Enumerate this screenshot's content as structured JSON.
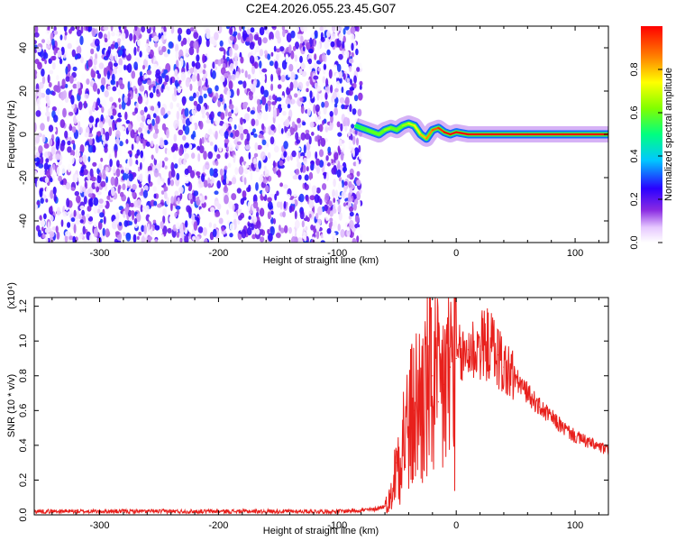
{
  "title": "C2E4.2026.055.23.45.G07",
  "colors": {
    "noise": "#7b2fe0",
    "signal_track": "#ff2020",
    "snr_line": "#e8201c",
    "frame": "#000000"
  },
  "chart_data": [
    {
      "type": "heatmap",
      "name": "spectrogram",
      "xlabel": "Height of straight line (km)",
      "ylabel": "Frequency (Hz)",
      "xlim": [
        -355,
        128
      ],
      "ylim": [
        -50,
        50
      ],
      "x_ticks": [
        -300,
        -200,
        -100,
        0,
        100
      ],
      "y_ticks": [
        -40,
        -20,
        0,
        20,
        40
      ],
      "colorbar": {
        "label": "Normalized spectral amplitude",
        "range": [
          0,
          1
        ],
        "ticks": [
          "0.0",
          "0.2",
          "0.4",
          "0.6",
          "0.8"
        ],
        "tick_values": [
          0.0,
          0.2,
          0.4,
          0.6,
          0.8
        ],
        "colormap": "rainbow (white-violet-blue-cyan-green-yellow-red)"
      },
      "noise_region": {
        "x_range": [
          -355,
          -80
        ],
        "freq_range": [
          -50,
          50
        ],
        "amplitude_range": [
          0.0,
          0.3
        ]
      },
      "signal_track": {
        "x": [
          -85,
          -80,
          -75,
          -70,
          -65,
          -60,
          -55,
          -50,
          -45,
          -40,
          -35,
          -30,
          -25,
          -20,
          -15,
          -10,
          -5,
          0,
          10,
          30,
          60,
          90,
          128
        ],
        "freq_hz": [
          4,
          3,
          2,
          1,
          0,
          2,
          3,
          2,
          4,
          5,
          4,
          0,
          -2,
          2,
          3,
          1,
          0,
          1,
          0,
          0,
          0,
          0,
          0
        ],
        "amplitude": [
          0.5,
          0.5,
          0.55,
          0.6,
          0.6,
          0.6,
          0.65,
          0.6,
          0.6,
          0.65,
          0.7,
          0.75,
          0.8,
          0.85,
          0.9,
          0.95,
          1.0,
          1.0,
          1.0,
          1.0,
          1.0,
          1.0,
          1.0
        ]
      }
    },
    {
      "type": "line",
      "name": "snr",
      "xlabel": "Height of straight line (km)",
      "ylabel": "SNR (10 * v/v)",
      "y_multiplier": "(x10⁴)",
      "xlim": [
        -355,
        128
      ],
      "ylim": [
        0,
        1.25
      ],
      "x_ticks": [
        -300,
        -200,
        -100,
        0,
        100
      ],
      "y_ticks": [
        0.0,
        0.2,
        0.4,
        0.6,
        0.8,
        1.0,
        1.2
      ],
      "y_tick_labels": [
        "0.0",
        "0.2",
        "0.4",
        "0.6",
        "0.8",
        "1.0",
        "1.2"
      ],
      "series": [
        {
          "x": [
            -355,
            -300,
            -250,
            -200,
            -150,
            -100,
            -70,
            -60,
            -55,
            -50,
            -45,
            -40,
            -35,
            -30,
            -25,
            -20,
            -15,
            -10,
            -5,
            0,
            5,
            10,
            15,
            20,
            25,
            30,
            35,
            40,
            50,
            60,
            70,
            80,
            90,
            100,
            110,
            120,
            128
          ],
          "values": [
            0.02,
            0.02,
            0.02,
            0.02,
            0.02,
            0.02,
            0.03,
            0.05,
            0.1,
            0.3,
            0.45,
            0.5,
            0.6,
            0.65,
            0.7,
            0.8,
            0.65,
            0.75,
            0.85,
            0.9,
            0.9,
            0.95,
            0.95,
            0.97,
            0.98,
            0.97,
            0.92,
            0.85,
            0.78,
            0.7,
            0.62,
            0.56,
            0.5,
            0.45,
            0.42,
            0.39,
            0.37
          ]
        }
      ]
    }
  ]
}
